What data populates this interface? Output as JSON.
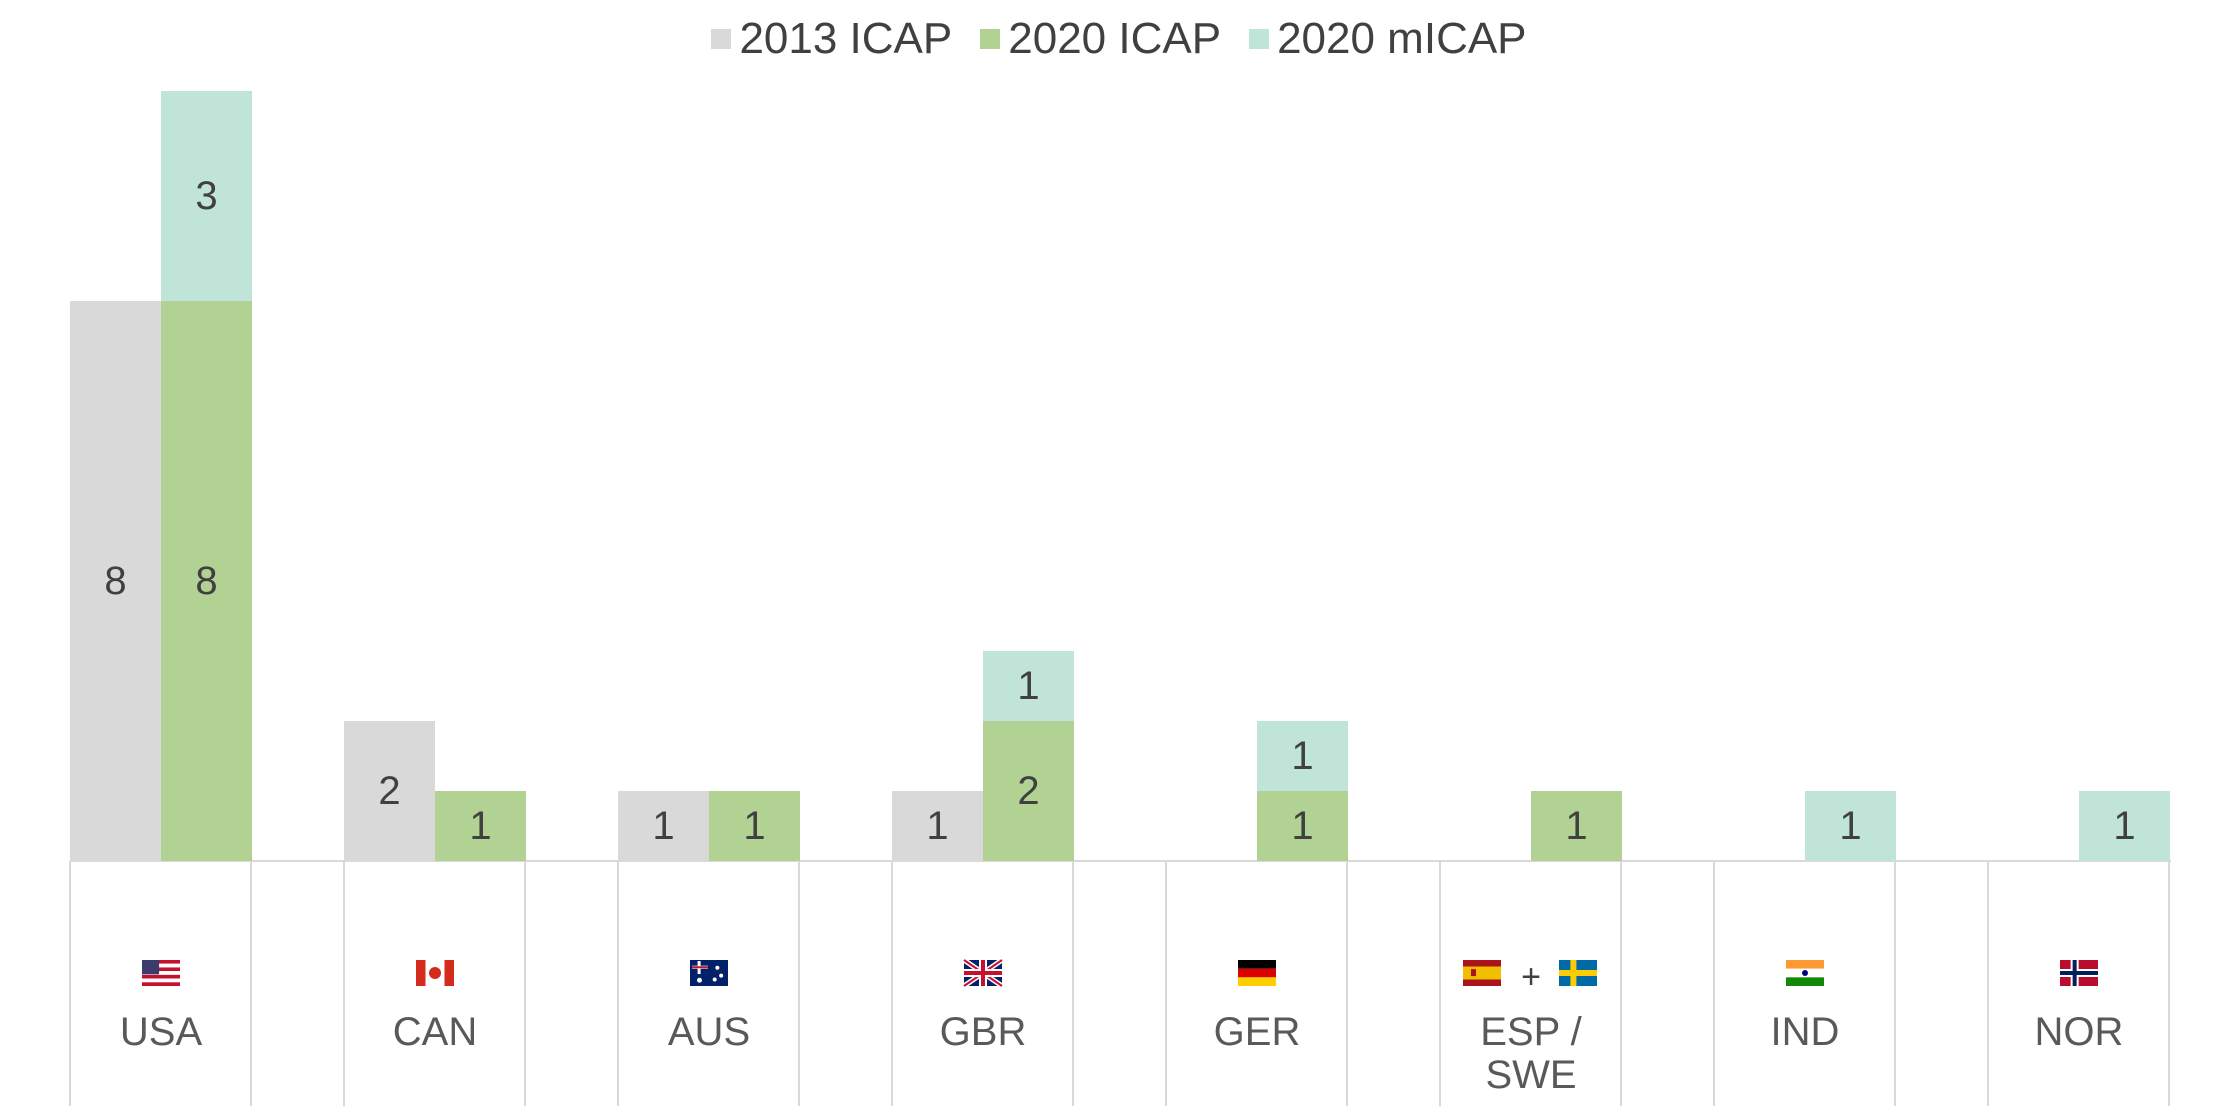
{
  "chart_data": {
    "type": "bar",
    "stacked_second_bar": true,
    "legend_position": "top-center",
    "grid": false,
    "colors": {
      "icap2013": "#d9d9d9",
      "icap2020": "#b2d293",
      "micap2020": "#c1e4d9"
    },
    "legend": [
      {
        "key": "icap2013",
        "label": "2013 ICAP"
      },
      {
        "key": "icap2020",
        "label": "2020 ICAP"
      },
      {
        "key": "micap2020",
        "label": "2020 mICAP"
      }
    ],
    "ylim": [
      0,
      11
    ],
    "categories": [
      {
        "label": "USA",
        "flags": [
          "us"
        ],
        "icap2013": 8,
        "icap2020": 8,
        "micap2020": 3
      },
      {
        "label": "CAN",
        "flags": [
          "ca"
        ],
        "icap2013": 2,
        "icap2020": 1,
        "micap2020": 0
      },
      {
        "label": "AUS",
        "flags": [
          "au"
        ],
        "icap2013": 1,
        "icap2020": 1,
        "micap2020": 0
      },
      {
        "label": "GBR",
        "flags": [
          "gb"
        ],
        "icap2013": 1,
        "icap2020": 2,
        "micap2020": 1
      },
      {
        "label": "GER",
        "flags": [
          "de"
        ],
        "icap2013": 0,
        "icap2020": 1,
        "micap2020": 1
      },
      {
        "label": "ESP / SWE",
        "flags": [
          "es",
          "se"
        ],
        "flag_joiner": "+",
        "icap2013": 0,
        "icap2020": 1,
        "micap2020": 0
      },
      {
        "label": "IND",
        "flags": [
          "in"
        ],
        "icap2013": 0,
        "icap2020": 0,
        "micap2020": 1
      },
      {
        "label": "NOR",
        "flags": [
          "no"
        ],
        "icap2013": 0,
        "icap2020": 0,
        "micap2020": 1
      }
    ]
  }
}
